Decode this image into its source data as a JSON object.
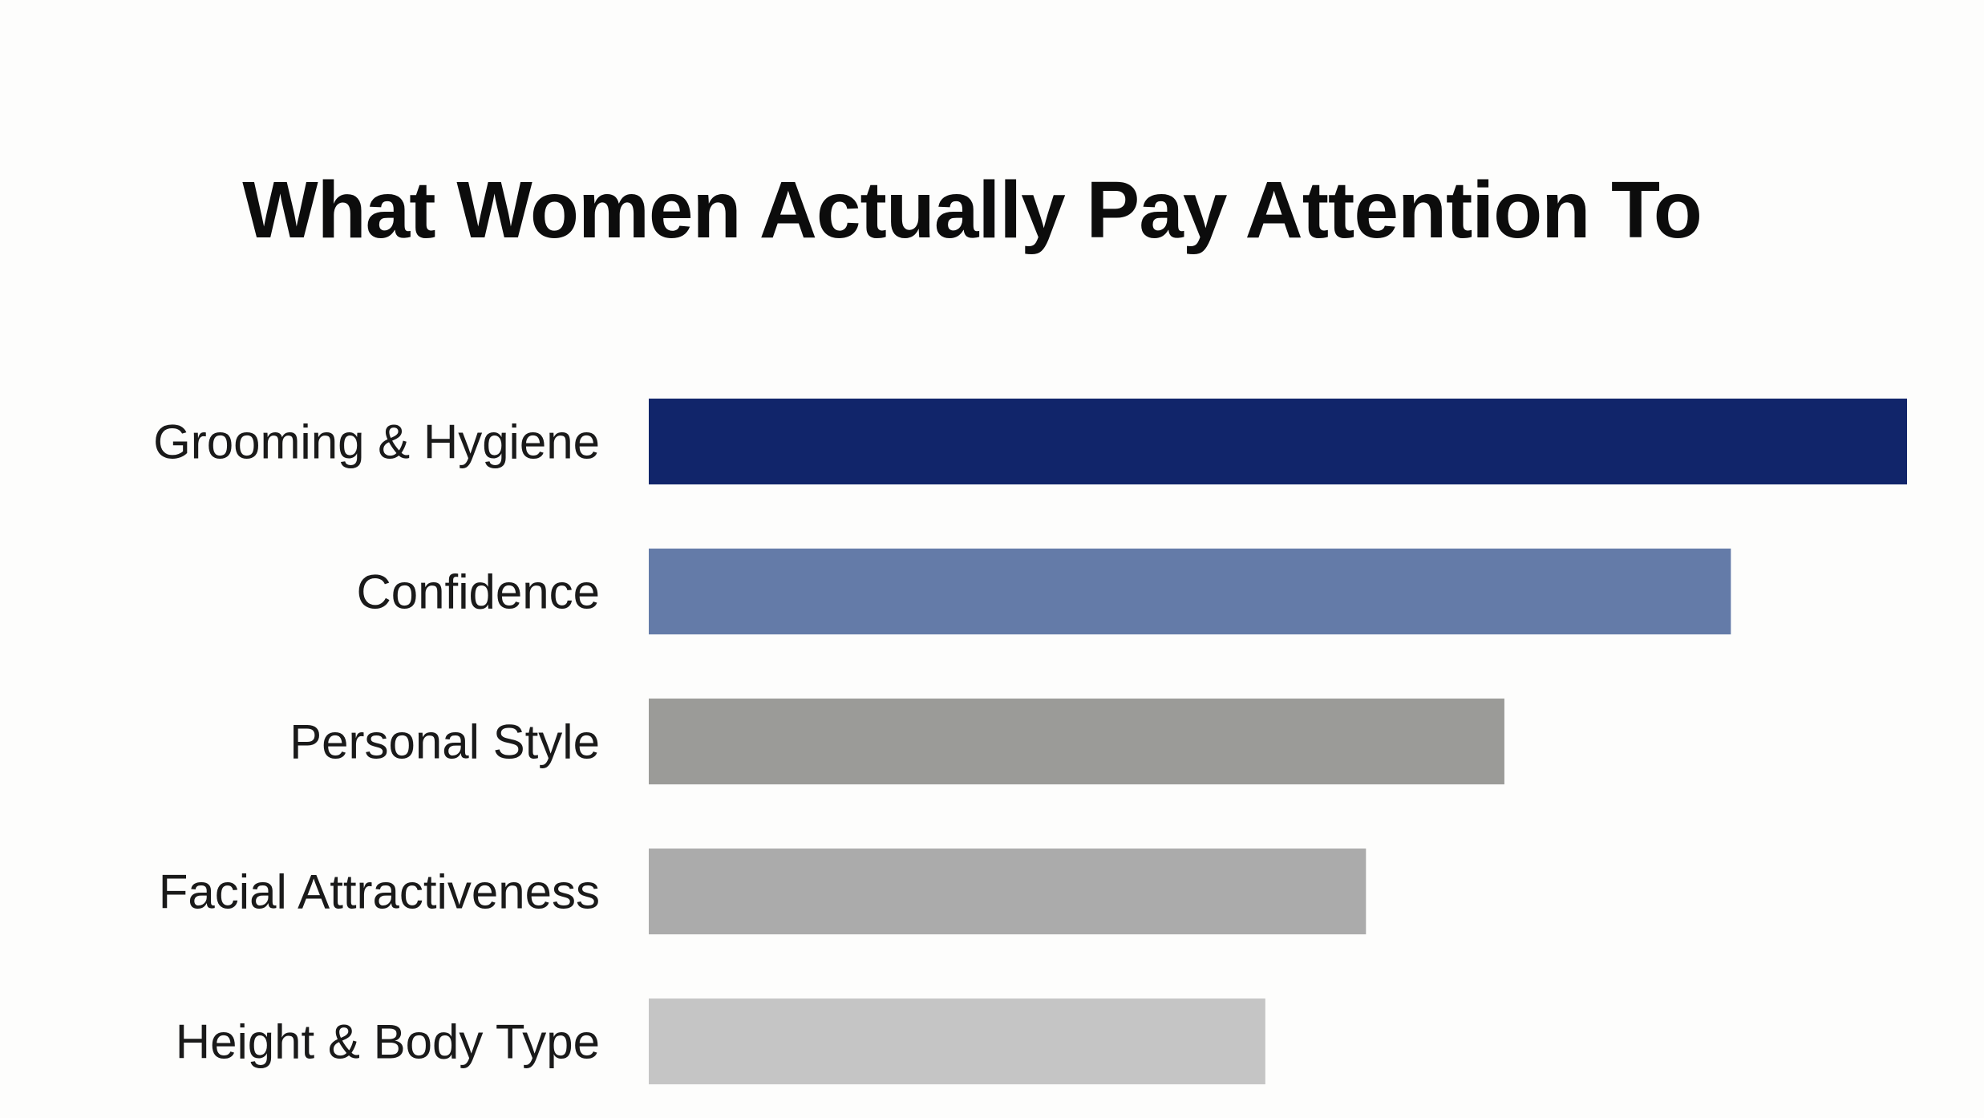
{
  "chart_data": {
    "type": "bar",
    "orientation": "horizontal",
    "title": "What Women Actually Pay Attention To",
    "categories": [
      "Grooming & Hygiene",
      "Confidence",
      "Personal Style",
      "Facial Attractiveness",
      "Height & Body Type"
    ],
    "values": [
      100,
      86,
      68,
      57,
      49
    ],
    "value_unit": "relative (percent of longest bar; no axis printed)",
    "colors": [
      "#11256a",
      "#647ba8",
      "#9b9b98",
      "#ababab",
      "#c5c5c5"
    ],
    "xlabel": "",
    "ylabel": "",
    "xlim": [
      0,
      100
    ],
    "grid": false,
    "legend": "none"
  }
}
